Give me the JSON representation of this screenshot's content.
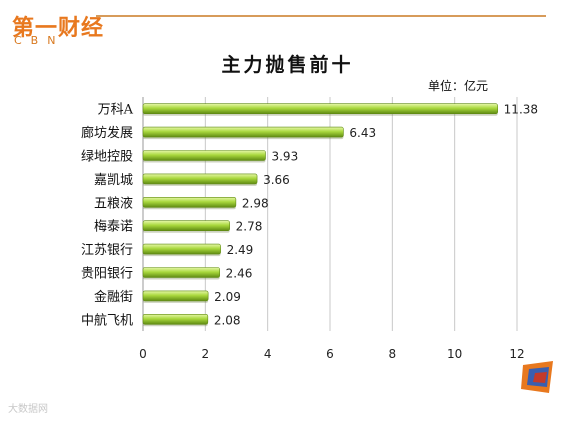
{
  "logo": {
    "main": "第一财经",
    "sub": "CBN"
  },
  "watermark": "大数据网",
  "colors": {
    "bar_light": "#d8f08a",
    "bar_mid": "#9acd32",
    "bar_dark": "#5f8a12",
    "accent": "#e8781e"
  },
  "chart_data": {
    "type": "bar",
    "orientation": "horizontal",
    "title": "主力抛售前十",
    "unit": "单位：亿元",
    "categories": [
      "万科A",
      "廊坊发展",
      "绿地控股",
      "嘉凯城",
      "五粮液",
      "梅泰诺",
      "江苏银行",
      "贵阳银行",
      "金融街",
      "中航飞机"
    ],
    "values": [
      11.38,
      6.43,
      3.93,
      3.66,
      2.98,
      2.78,
      2.49,
      2.46,
      2.09,
      2.08
    ],
    "value_labels": [
      "11.38",
      "6.43",
      "3.93",
      "3.66",
      "2.98",
      "2.78",
      "2.49",
      "2.46",
      "2.09",
      "2.08"
    ],
    "xlim": [
      0,
      12
    ],
    "xticks": [
      "0",
      "2",
      "4",
      "6",
      "8",
      "10",
      "12"
    ],
    "grid": true,
    "legend": "none"
  }
}
